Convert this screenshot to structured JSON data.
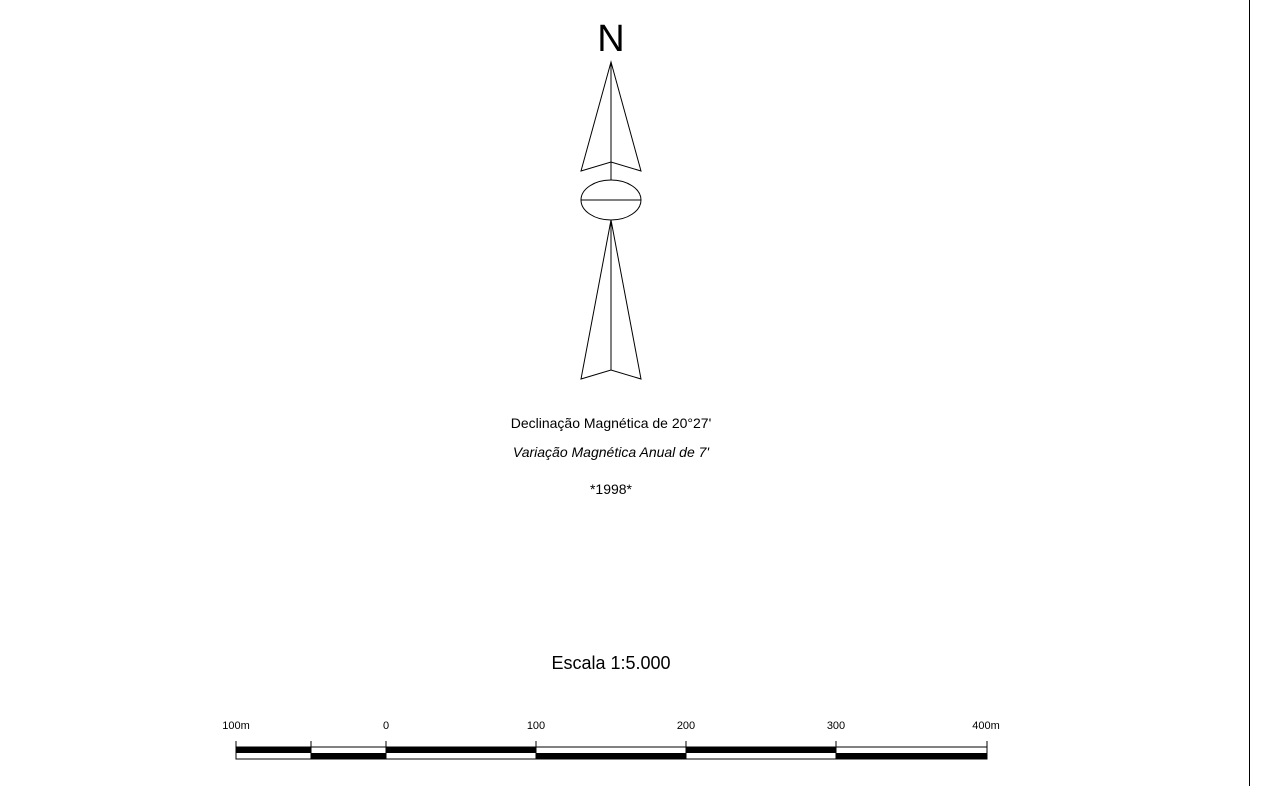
{
  "north_arrow": {
    "letter": "N",
    "declination_text": "Declinação Magnética de 20°27'",
    "annual_variation_text": "Variação Magnética Anual de 7'",
    "year_text": "*1998*"
  },
  "scale": {
    "title": "Escala 1:5.000",
    "ticks": [
      "100m",
      "0",
      "100",
      "200",
      "300",
      "400m"
    ]
  },
  "colors": {
    "ink": "#000000",
    "background": "#ffffff"
  }
}
